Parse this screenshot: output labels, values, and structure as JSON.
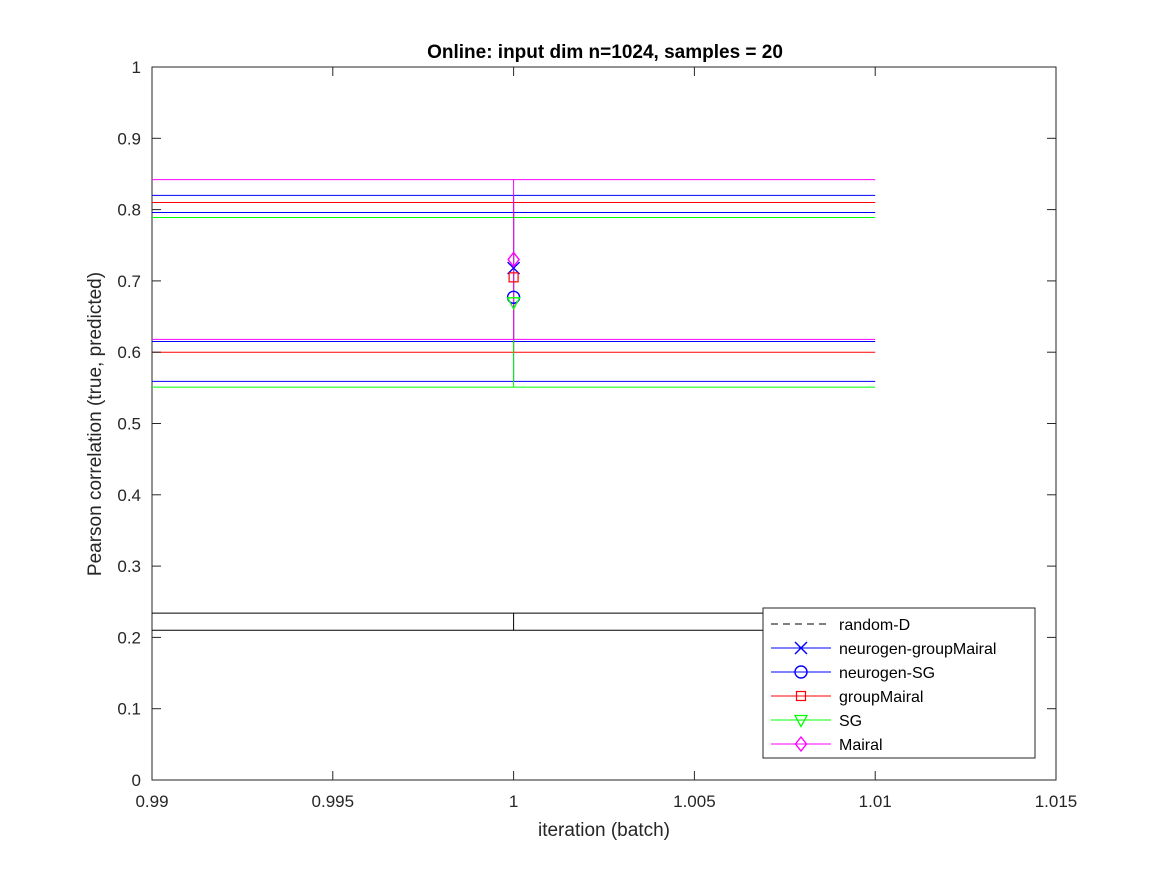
{
  "chart_data": {
    "type": "line",
    "title": "Online:  input dim n=1024, samples = 20",
    "xlabel": "iteration (batch)",
    "ylabel": "Pearson correlation (true, predicted)",
    "xlim": [
      0.99,
      1.015
    ],
    "ylim": [
      0,
      1
    ],
    "xticks": [
      0.99,
      0.995,
      1,
      1.005,
      1.01,
      1.015
    ],
    "xtick_labels": [
      "0.99",
      "0.995",
      "1",
      "1.005",
      "1.01",
      "1.015"
    ],
    "yticks": [
      0,
      0.1,
      0.2,
      0.3,
      0.4,
      0.5,
      0.6,
      0.7,
      0.8,
      0.9,
      1
    ],
    "ytick_labels": [
      "0",
      "0.1",
      "0.2",
      "0.3",
      "0.4",
      "0.5",
      "0.6",
      "0.7",
      "0.8",
      "0.9",
      "1"
    ],
    "grid": false,
    "legend_position": "bottom-right",
    "errorbar_cap_extent": [
      0.99,
      1.01
    ],
    "series": [
      {
        "name": "random-D",
        "color": "#000000",
        "marker": "none",
        "dash": true,
        "x": [
          1
        ],
        "y": [
          0.222
        ],
        "err_low": 0.21,
        "err_high": 0.234
      },
      {
        "name": "neurogen-groupMairal",
        "color": "#0000ff",
        "marker": "x",
        "dash": false,
        "x": [
          1
        ],
        "y": [
          0.718
        ],
        "err_low": 0.615,
        "err_high": 0.82
      },
      {
        "name": "neurogen-SG",
        "color": "#0000ff",
        "marker": "circle",
        "dash": false,
        "x": [
          1
        ],
        "y": [
          0.677
        ],
        "err_low": 0.559,
        "err_high": 0.796
      },
      {
        "name": "groupMairal",
        "color": "#ff0000",
        "marker": "square",
        "dash": false,
        "x": [
          1
        ],
        "y": [
          0.705
        ],
        "err_low": 0.6,
        "err_high": 0.81
      },
      {
        "name": "SG",
        "color": "#00ff00",
        "marker": "triangle-down",
        "dash": false,
        "x": [
          1
        ],
        "y": [
          0.67
        ],
        "err_low": 0.551,
        "err_high": 0.789
      },
      {
        "name": "Mairal",
        "color": "#ff00ff",
        "marker": "diamond",
        "dash": false,
        "x": [
          1
        ],
        "y": [
          0.73
        ],
        "err_low": 0.618,
        "err_high": 0.842
      }
    ]
  }
}
